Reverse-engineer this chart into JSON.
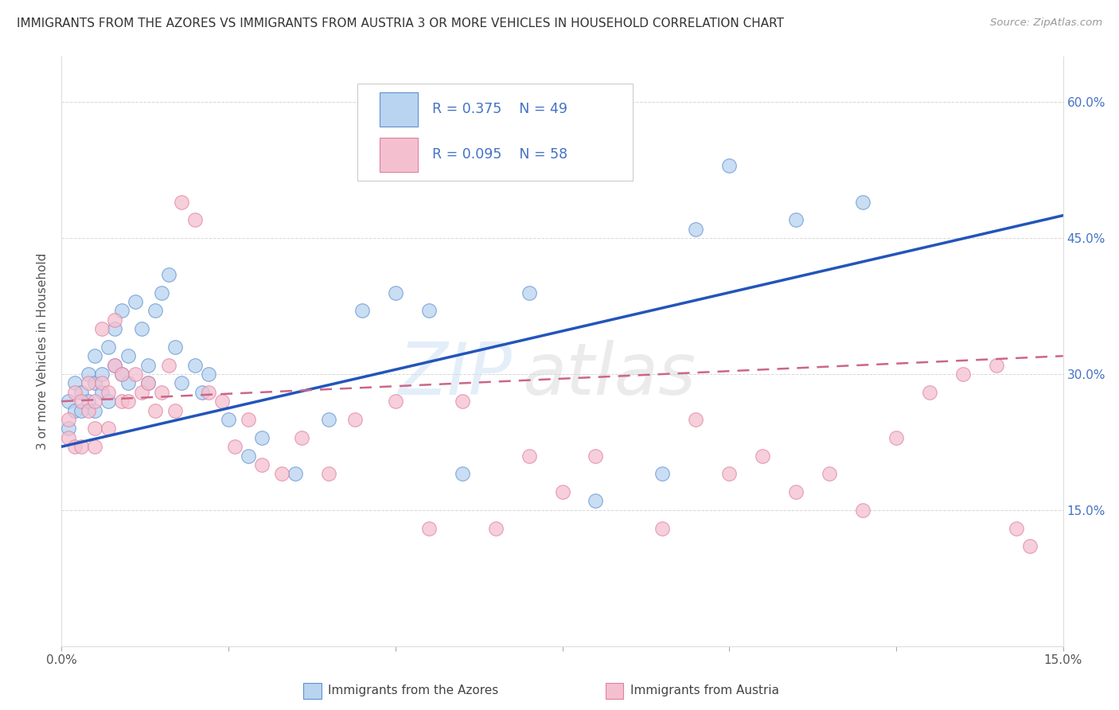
{
  "title": "IMMIGRANTS FROM THE AZORES VS IMMIGRANTS FROM AUSTRIA 3 OR MORE VEHICLES IN HOUSEHOLD CORRELATION CHART",
  "source": "Source: ZipAtlas.com",
  "ylabel": "3 or more Vehicles in Household",
  "xlim": [
    0.0,
    0.15
  ],
  "ylim": [
    0.0,
    0.65
  ],
  "xticks": [
    0.0,
    0.025,
    0.05,
    0.075,
    0.1,
    0.125,
    0.15
  ],
  "yticks": [
    0.0,
    0.15,
    0.3,
    0.45,
    0.6
  ],
  "R_azores": 0.375,
  "N_azores": 49,
  "R_austria": 0.095,
  "N_austria": 58,
  "color_azores": "#b8d4f0",
  "color_austria": "#f4c0d0",
  "edge_color_azores": "#6090d0",
  "edge_color_austria": "#e080a0",
  "line_color_azores": "#2255bb",
  "line_color_austria": "#cc6688",
  "background_color": "#ffffff",
  "grid_color": "#cccccc",
  "azores_x": [
    0.001,
    0.001,
    0.002,
    0.002,
    0.003,
    0.003,
    0.004,
    0.004,
    0.005,
    0.005,
    0.005,
    0.006,
    0.006,
    0.007,
    0.007,
    0.008,
    0.008,
    0.009,
    0.009,
    0.01,
    0.01,
    0.011,
    0.012,
    0.013,
    0.013,
    0.014,
    0.015,
    0.016,
    0.017,
    0.018,
    0.02,
    0.021,
    0.022,
    0.025,
    0.028,
    0.03,
    0.035,
    0.04,
    0.045,
    0.05,
    0.055,
    0.06,
    0.07,
    0.08,
    0.09,
    0.095,
    0.1,
    0.11,
    0.12
  ],
  "azores_y": [
    0.27,
    0.24,
    0.26,
    0.29,
    0.28,
    0.26,
    0.3,
    0.27,
    0.29,
    0.32,
    0.26,
    0.28,
    0.3,
    0.33,
    0.27,
    0.31,
    0.35,
    0.3,
    0.37,
    0.29,
    0.32,
    0.38,
    0.35,
    0.29,
    0.31,
    0.37,
    0.39,
    0.41,
    0.33,
    0.29,
    0.31,
    0.28,
    0.3,
    0.25,
    0.21,
    0.23,
    0.19,
    0.25,
    0.37,
    0.39,
    0.37,
    0.19,
    0.39,
    0.16,
    0.19,
    0.46,
    0.53,
    0.47,
    0.49
  ],
  "austria_x": [
    0.001,
    0.001,
    0.002,
    0.002,
    0.003,
    0.003,
    0.004,
    0.004,
    0.005,
    0.005,
    0.005,
    0.006,
    0.006,
    0.007,
    0.007,
    0.008,
    0.008,
    0.009,
    0.009,
    0.01,
    0.011,
    0.012,
    0.013,
    0.014,
    0.015,
    0.016,
    0.017,
    0.018,
    0.02,
    0.022,
    0.024,
    0.026,
    0.028,
    0.03,
    0.033,
    0.036,
    0.04,
    0.044,
    0.05,
    0.055,
    0.06,
    0.065,
    0.07,
    0.075,
    0.08,
    0.09,
    0.095,
    0.1,
    0.105,
    0.11,
    0.115,
    0.12,
    0.125,
    0.13,
    0.135,
    0.14,
    0.143,
    0.145
  ],
  "austria_y": [
    0.23,
    0.25,
    0.22,
    0.28,
    0.22,
    0.27,
    0.26,
    0.29,
    0.24,
    0.27,
    0.22,
    0.35,
    0.29,
    0.28,
    0.24,
    0.36,
    0.31,
    0.3,
    0.27,
    0.27,
    0.3,
    0.28,
    0.29,
    0.26,
    0.28,
    0.31,
    0.26,
    0.49,
    0.47,
    0.28,
    0.27,
    0.22,
    0.25,
    0.2,
    0.19,
    0.23,
    0.19,
    0.25,
    0.27,
    0.13,
    0.27,
    0.13,
    0.21,
    0.17,
    0.21,
    0.13,
    0.25,
    0.19,
    0.21,
    0.17,
    0.19,
    0.15,
    0.23,
    0.28,
    0.3,
    0.31,
    0.13,
    0.11
  ],
  "line_az_x0": 0.0,
  "line_az_y0": 0.22,
  "line_az_x1": 0.15,
  "line_az_y1": 0.475,
  "line_at_x0": 0.0,
  "line_at_y0": 0.27,
  "line_at_x1": 0.15,
  "line_at_y1": 0.32
}
